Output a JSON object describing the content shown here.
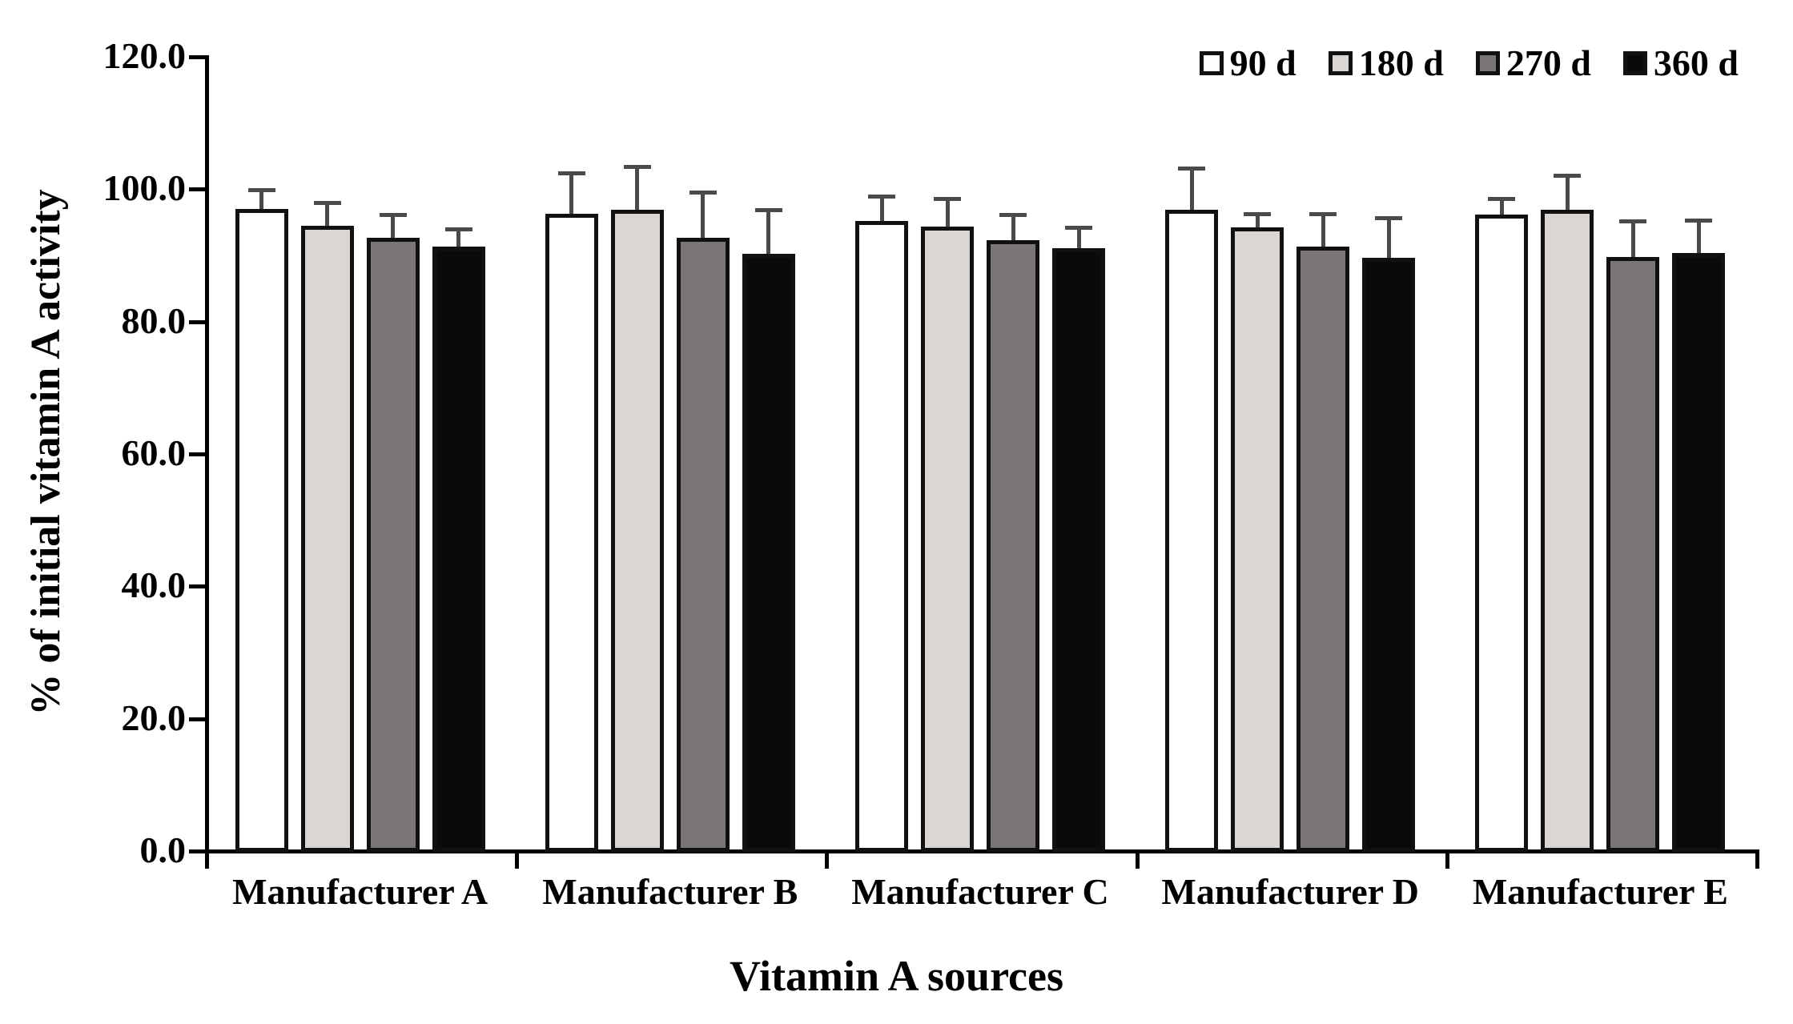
{
  "figure": {
    "background": "#ffffff",
    "text_color": "#000000"
  },
  "chart_data": {
    "type": "bar",
    "title": "",
    "xlabel": "Vitamin A sources",
    "ylabel": "% of initial vitamin A activity",
    "ylim": [
      0,
      120
    ],
    "ytick_step": 20,
    "ytick_labels": [
      "0.0",
      "20.0",
      "40.0",
      "60.0",
      "80.0",
      "100.0",
      "120.0"
    ],
    "grid": false,
    "legend_position": "top-right",
    "error_bars": "upper-only",
    "categories": [
      "Manufacturer A",
      "Manufacturer B",
      "Manufacturer C",
      "Manufacturer D",
      "Manufacturer E"
    ],
    "series": [
      {
        "name": "90 d",
        "fill": "#ffffff",
        "values": [
          96.8,
          96.0,
          95.0,
          96.6,
          95.9
        ],
        "errors": [
          2.9,
          6.2,
          3.7,
          6.3,
          2.4
        ]
      },
      {
        "name": "180 d",
        "fill": "#d9d6d3",
        "values": [
          94.2,
          96.6,
          94.1,
          94.0,
          96.6
        ],
        "errors": [
          3.5,
          6.6,
          4.3,
          2.1,
          5.3
        ]
      },
      {
        "name": "270 d",
        "fill": "#7a7576",
        "values": [
          92.4,
          92.4,
          92.1,
          91.1,
          89.5
        ],
        "errors": [
          3.5,
          6.9,
          3.8,
          5.0,
          5.4
        ]
      },
      {
        "name": "360 d",
        "fill": "#0a0a0a",
        "values": [
          91.1,
          90.0,
          90.9,
          89.4,
          90.1
        ],
        "errors": [
          2.7,
          6.7,
          3.1,
          6.1,
          5.0
        ]
      }
    ],
    "bar_border_color": "#111111",
    "error_bar_color": "#4a4a4a"
  }
}
